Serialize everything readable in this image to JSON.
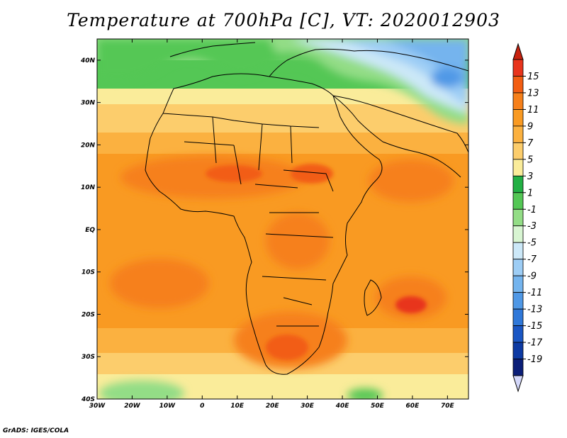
{
  "title": "Temperature at 700hPa [C], VT: 2020012903",
  "credit": "GrADS: IGES/COLA",
  "map": {
    "lon_range": [
      -30,
      76
    ],
    "lat_range": [
      -40,
      45
    ],
    "lat_ticks": [
      {
        "value": 40,
        "label": "40N"
      },
      {
        "value": 30,
        "label": "30N"
      },
      {
        "value": 20,
        "label": "20N"
      },
      {
        "value": 10,
        "label": "10N"
      },
      {
        "value": 0,
        "label": "EQ"
      },
      {
        "value": -10,
        "label": "10S"
      },
      {
        "value": -20,
        "label": "20S"
      },
      {
        "value": -30,
        "label": "30S"
      },
      {
        "value": -40,
        "label": "40S"
      }
    ],
    "lon_ticks": [
      {
        "value": -30,
        "label": "30W"
      },
      {
        "value": -20,
        "label": "20W"
      },
      {
        "value": -10,
        "label": "10W"
      },
      {
        "value": 0,
        "label": "0"
      },
      {
        "value": 10,
        "label": "10E"
      },
      {
        "value": 20,
        "label": "20E"
      },
      {
        "value": 30,
        "label": "30E"
      },
      {
        "value": 40,
        "label": "40E"
      },
      {
        "value": 50,
        "label": "50E"
      },
      {
        "value": 60,
        "label": "60E"
      },
      {
        "value": 70,
        "label": "70E"
      }
    ]
  },
  "colorbar": {
    "labels": [
      "15",
      "13",
      "11",
      "9",
      "7",
      "5",
      "3",
      "1",
      "-1",
      "-3",
      "-5",
      "-7",
      "-9",
      "-11",
      "-13",
      "-15",
      "-17",
      "-19"
    ],
    "colors": [
      "#e8341c",
      "#f25d12",
      "#f6801a",
      "#f99a22",
      "#fbb140",
      "#fccd6c",
      "#faec9a",
      "#22b044",
      "#54c755",
      "#93dd86",
      "#d8f5d2",
      "#cce8f8",
      "#9dcdf5",
      "#74b4ee",
      "#4f98e6",
      "#2f78d9",
      "#1a56c4",
      "#0d3aa3",
      "#0b1e78"
    ],
    "top_arrow_color": "#c8220e",
    "bottom_arrow_color": "#d4d8fa"
  }
}
